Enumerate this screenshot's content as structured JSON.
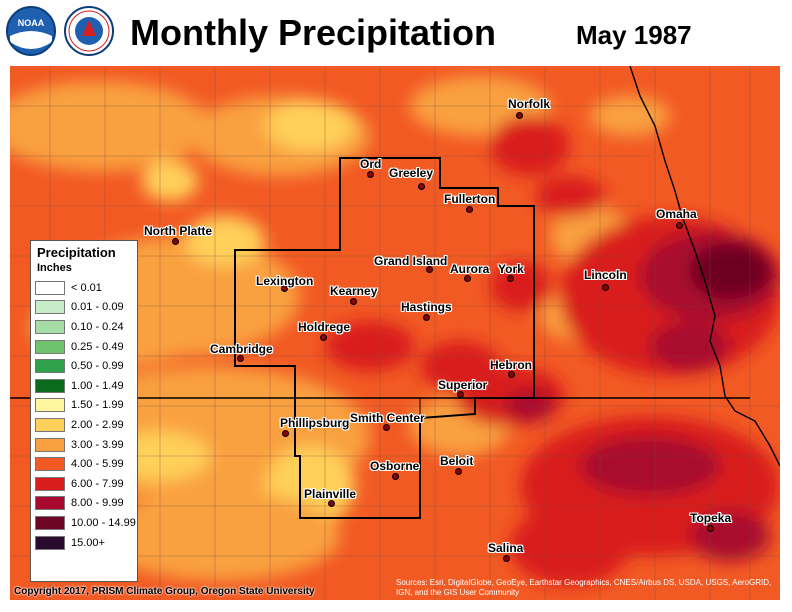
{
  "header": {
    "title": "Monthly Precipitation",
    "period": "May 1987"
  },
  "logos": [
    {
      "name": "noaa-logo",
      "text": "NOAA"
    },
    {
      "name": "nws-logo",
      "text": "NATIONAL WEATHER SERVICE"
    }
  ],
  "legend": {
    "title": "Precipitation",
    "units": "Inches",
    "items": [
      {
        "label": "< 0.01",
        "color": "#ffffff"
      },
      {
        "label": "0.01 - 0.09",
        "color": "#c8ecc8"
      },
      {
        "label": "0.10 - 0.24",
        "color": "#a6dca6"
      },
      {
        "label": "0.25 - 0.49",
        "color": "#6fc36f"
      },
      {
        "label": "0.50 - 0.99",
        "color": "#2fa14a"
      },
      {
        "label": "1.00 - 1.49",
        "color": "#0a6b1e"
      },
      {
        "label": "1.50 - 1.99",
        "color": "#fff7a0"
      },
      {
        "label": "2.00 - 2.99",
        "color": "#ffd05a"
      },
      {
        "label": "3.00 - 3.99",
        "color": "#f9a040"
      },
      {
        "label": "4.00 - 5.99",
        "color": "#f25a24"
      },
      {
        "label": "6.00 - 7.99",
        "color": "#d91d1d"
      },
      {
        "label": "8.00 - 9.99",
        "color": "#a8072e"
      },
      {
        "label": "10.00 - 14.99",
        "color": "#6d0524"
      },
      {
        "label": "15.00+",
        "color": "#2a0a2e"
      }
    ]
  },
  "cities": [
    "Norfolk",
    "Ord",
    "Greeley",
    "Fullerton",
    "North Platte",
    "Omaha",
    "Grand Island",
    "Aurora",
    "York",
    "Lincoln",
    "Lexington",
    "Kearney",
    "Hastings",
    "Holdrege",
    "Cambridge",
    "Hebron",
    "Superior",
    "Phillipsburg",
    "Smith Center",
    "Beloit",
    "Osborne",
    "Plainville",
    "Topeka",
    "Salina"
  ],
  "footer": {
    "copyright": "Copyright 2017, PRISM Climate Group, Oregon State University",
    "credits": "Sources: Esri, DigitalGlobe, GeoEye, Earthstar Geographics, CNES/Airbus DS, USDA, USGS, AeroGRID, IGN, and the GIS User Community"
  },
  "colors": {
    "base": "#f25a24",
    "light": "#f9a040",
    "lighter": "#ffd05a",
    "heavy": "#d91d1d",
    "very_heavy": "#a8072e",
    "extreme": "#6d0524"
  }
}
